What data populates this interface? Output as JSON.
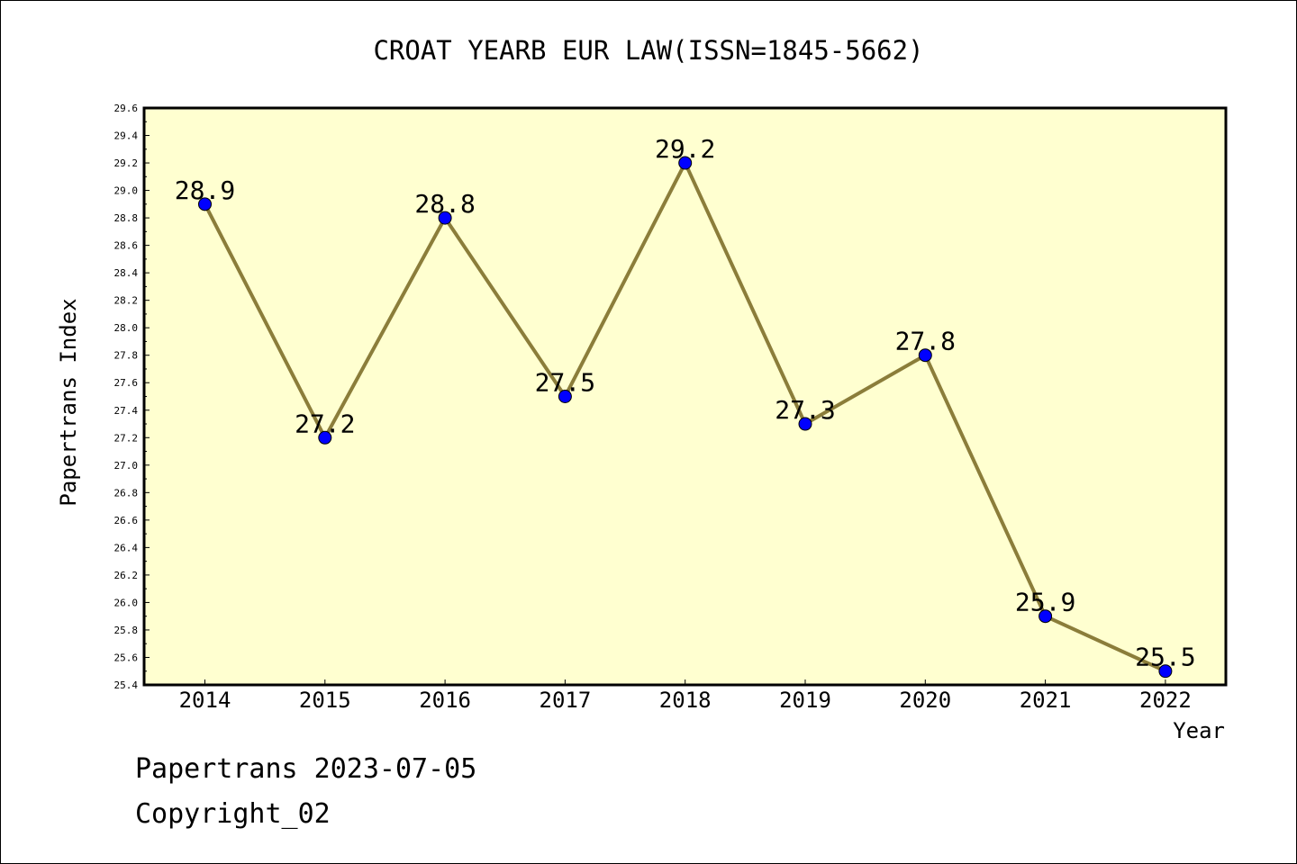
{
  "chart_data": {
    "type": "line",
    "title": "CROAT YEARB EUR LAW(ISSN=1845-5662)",
    "xlabel": "Year",
    "ylabel": "Papertrans Index",
    "categories": [
      "2014",
      "2015",
      "2016",
      "2017",
      "2018",
      "2019",
      "2020",
      "2021",
      "2022"
    ],
    "series": [
      {
        "values": [
          28.9,
          27.2,
          28.8,
          27.5,
          29.2,
          27.3,
          27.8,
          25.9,
          25.5
        ]
      }
    ],
    "data_labels": [
      "28.9",
      "27.2",
      "28.8",
      "27.5",
      "29.2",
      "27.3",
      "27.8",
      "25.9",
      "25.5"
    ],
    "ylim": [
      25.4,
      29.6
    ],
    "y_ticks": [
      "25.4",
      "25.6",
      "25.8",
      "26.0",
      "26.2",
      "26.4",
      "26.6",
      "26.8",
      "27.0",
      "27.2",
      "27.4",
      "27.6",
      "27.8",
      "28.0",
      "28.2",
      "28.4",
      "28.6",
      "28.8",
      "29.0",
      "29.2",
      "29.4",
      "29.6"
    ],
    "grid": false,
    "colors": {
      "plot_background": "#ffffd0",
      "line": "#8b7d3a",
      "marker": "#0000ff"
    }
  },
  "footer": {
    "line1": "Papertrans 2023-07-05",
    "line2": "Copyright_02"
  }
}
